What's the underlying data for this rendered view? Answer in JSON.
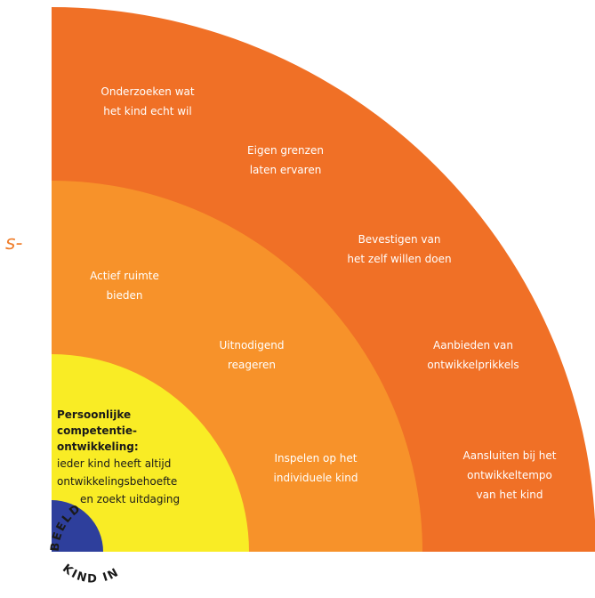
{
  "colors": {
    "outer_ring": "#f07026",
    "middle_ring": "#f7922a",
    "core": "#f9ec25",
    "center_dot": "#2e3f9c",
    "fragment": "#f07f2d"
  },
  "left_fragment": "s-",
  "outer_ring": {
    "labels": [
      {
        "lines": [
          "Onderzoeken wat",
          "het kind echt wil"
        ]
      },
      {
        "lines": [
          "Eigen grenzen",
          "laten ervaren"
        ]
      },
      {
        "lines": [
          "Bevestigen van",
          "het zelf willen doen"
        ]
      },
      {
        "lines": [
          "Aanbieden van",
          "ontwikkelprikkels"
        ]
      },
      {
        "lines": [
          "Aansluiten bij het",
          "ontwikkeltempo",
          "van het kind"
        ]
      }
    ]
  },
  "middle_ring": {
    "labels": [
      {
        "lines": [
          "Actief ruimte",
          "bieden"
        ]
      },
      {
        "lines": [
          "Uitnodigend",
          "reageren"
        ]
      },
      {
        "lines": [
          "Inspelen op het",
          "individuele kind"
        ]
      }
    ]
  },
  "core": {
    "title_lines": [
      "Persoonlijke",
      "competentie-",
      "ontwikkeling:"
    ],
    "text_lines": [
      "ieder kind heeft altijd",
      "ontwikkelingsbehoefte",
      "en zoekt uitdaging"
    ]
  },
  "logo": {
    "top_text": "BEELD",
    "bottom_text": "KIND IN"
  }
}
